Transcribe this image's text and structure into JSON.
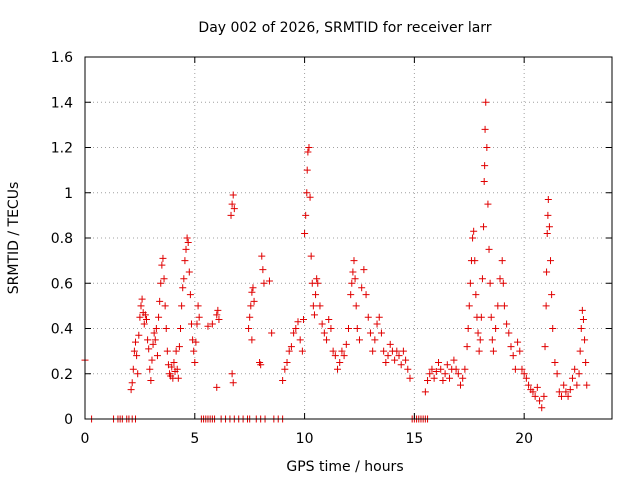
{
  "chart_data": {
    "type": "scatter",
    "title": "Day 002 of 2026, SRMTID for receiver larr",
    "xlabel": "GPS time / hours",
    "ylabel": "SRMTID / TECUs",
    "xlim": [
      0,
      24
    ],
    "ylim": [
      0,
      1.6
    ],
    "grid": true,
    "marker": "+",
    "color": "#e00000",
    "x_ticks": [
      0,
      5,
      10,
      15,
      20
    ],
    "x_tick_labels": [
      "0",
      "5",
      "10",
      "15",
      "20"
    ],
    "y_ticks": [
      0,
      0.2,
      0.4,
      0.6,
      0.8,
      1.0,
      1.2,
      1.4,
      1.6
    ],
    "y_tick_labels": [
      "0",
      "0.2",
      "0.4",
      "0.6",
      "0.8",
      "1",
      "1.2",
      "1.4",
      "1.6"
    ],
    "series": [
      {
        "name": "SRMTID",
        "points": [
          [
            0.0,
            0.26
          ],
          [
            0.3,
            0.0
          ],
          [
            1.3,
            0.0
          ],
          [
            1.5,
            0.0
          ],
          [
            1.6,
            0.0
          ],
          [
            1.7,
            0.0
          ],
          [
            1.9,
            0.0
          ],
          [
            2.0,
            0.0
          ],
          [
            2.15,
            0.0
          ],
          [
            2.3,
            0.0
          ],
          [
            2.1,
            0.13
          ],
          [
            2.15,
            0.16
          ],
          [
            2.2,
            0.22
          ],
          [
            2.25,
            0.3
          ],
          [
            2.3,
            0.34
          ],
          [
            2.35,
            0.28
          ],
          [
            2.4,
            0.2
          ],
          [
            2.45,
            0.37
          ],
          [
            2.5,
            0.45
          ],
          [
            2.55,
            0.5
          ],
          [
            2.6,
            0.53
          ],
          [
            2.65,
            0.47
          ],
          [
            2.7,
            0.42
          ],
          [
            2.75,
            0.46
          ],
          [
            2.8,
            0.44
          ],
          [
            2.85,
            0.35
          ],
          [
            2.9,
            0.31
          ],
          [
            2.95,
            0.22
          ],
          [
            3.0,
            0.17
          ],
          [
            3.05,
            0.26
          ],
          [
            3.1,
            0.33
          ],
          [
            3.15,
            0.38
          ],
          [
            3.2,
            0.35
          ],
          [
            3.25,
            0.4
          ],
          [
            3.3,
            0.28
          ],
          [
            3.35,
            0.45
          ],
          [
            3.4,
            0.52
          ],
          [
            3.45,
            0.6
          ],
          [
            3.5,
            0.68
          ],
          [
            3.55,
            0.71
          ],
          [
            3.6,
            0.62
          ],
          [
            3.65,
            0.5
          ],
          [
            3.7,
            0.4
          ],
          [
            3.75,
            0.3
          ],
          [
            3.8,
            0.24
          ],
          [
            3.85,
            0.2
          ],
          [
            3.9,
            0.19
          ],
          [
            3.95,
            0.23
          ],
          [
            4.0,
            0.18
          ],
          [
            4.05,
            0.25
          ],
          [
            4.1,
            0.21
          ],
          [
            4.15,
            0.3
          ],
          [
            4.2,
            0.22
          ],
          [
            4.25,
            0.18
          ],
          [
            4.3,
            0.32
          ],
          [
            4.35,
            0.4
          ],
          [
            4.4,
            0.5
          ],
          [
            4.45,
            0.58
          ],
          [
            4.5,
            0.62
          ],
          [
            4.55,
            0.7
          ],
          [
            4.6,
            0.75
          ],
          [
            4.65,
            0.8
          ],
          [
            4.7,
            0.78
          ],
          [
            4.75,
            0.65
          ],
          [
            4.8,
            0.55
          ],
          [
            4.85,
            0.42
          ],
          [
            4.9,
            0.35
          ],
          [
            4.95,
            0.3
          ],
          [
            5.0,
            0.25
          ],
          [
            5.05,
            0.34
          ],
          [
            5.1,
            0.42
          ],
          [
            5.15,
            0.5
          ],
          [
            5.2,
            0.45
          ],
          [
            5.3,
            0.0
          ],
          [
            5.4,
            0.0
          ],
          [
            5.5,
            0.0
          ],
          [
            5.6,
            0.0
          ],
          [
            5.7,
            0.0
          ],
          [
            5.8,
            0.0
          ],
          [
            5.9,
            0.0
          ],
          [
            5.6,
            0.41
          ],
          [
            5.8,
            0.42
          ],
          [
            6.0,
            0.46
          ],
          [
            6.05,
            0.48
          ],
          [
            6.1,
            0.44
          ],
          [
            6.0,
            0.14
          ],
          [
            6.2,
            0.0
          ],
          [
            6.4,
            0.0
          ],
          [
            6.6,
            0.0
          ],
          [
            6.8,
            0.0
          ],
          [
            6.7,
            0.2
          ],
          [
            6.75,
            0.16
          ],
          [
            6.65,
            0.9
          ],
          [
            6.7,
            0.95
          ],
          [
            6.75,
            0.99
          ],
          [
            6.8,
            0.93
          ],
          [
            7.0,
            0.0
          ],
          [
            7.2,
            0.0
          ],
          [
            7.4,
            0.0
          ],
          [
            7.5,
            0.0
          ],
          [
            7.45,
            0.4
          ],
          [
            7.5,
            0.45
          ],
          [
            7.55,
            0.5
          ],
          [
            7.6,
            0.56
          ],
          [
            7.65,
            0.58
          ],
          [
            7.7,
            0.52
          ],
          [
            7.6,
            0.35
          ],
          [
            7.8,
            0.0
          ],
          [
            8.0,
            0.0
          ],
          [
            8.2,
            0.0
          ],
          [
            7.95,
            0.25
          ],
          [
            8.0,
            0.24
          ],
          [
            8.05,
            0.72
          ],
          [
            8.1,
            0.66
          ],
          [
            8.15,
            0.6
          ],
          [
            8.5,
            0.38
          ],
          [
            8.4,
            0.61
          ],
          [
            8.6,
            0.0
          ],
          [
            8.8,
            0.0
          ],
          [
            9.0,
            0.0
          ],
          [
            9.0,
            0.17
          ],
          [
            9.1,
            0.22
          ],
          [
            9.2,
            0.25
          ],
          [
            9.3,
            0.3
          ],
          [
            9.4,
            0.32
          ],
          [
            9.5,
            0.38
          ],
          [
            9.6,
            0.4
          ],
          [
            9.7,
            0.43
          ],
          [
            9.8,
            0.35
          ],
          [
            9.9,
            0.3
          ],
          [
            9.95,
            0.44
          ],
          [
            10.0,
            0.82
          ],
          [
            10.05,
            0.9
          ],
          [
            10.1,
            1.0
          ],
          [
            10.12,
            1.1
          ],
          [
            10.15,
            1.18
          ],
          [
            10.2,
            1.2
          ],
          [
            10.25,
            0.98
          ],
          [
            10.3,
            0.72
          ],
          [
            10.35,
            0.6
          ],
          [
            10.4,
            0.5
          ],
          [
            10.45,
            0.46
          ],
          [
            10.5,
            0.55
          ],
          [
            10.55,
            0.62
          ],
          [
            10.6,
            0.6
          ],
          [
            10.7,
            0.5
          ],
          [
            10.8,
            0.42
          ],
          [
            10.9,
            0.38
          ],
          [
            11.0,
            0.35
          ],
          [
            11.1,
            0.44
          ],
          [
            11.2,
            0.4
          ],
          [
            11.3,
            0.3
          ],
          [
            11.4,
            0.28
          ],
          [
            11.5,
            0.22
          ],
          [
            11.6,
            0.25
          ],
          [
            11.7,
            0.3
          ],
          [
            11.8,
            0.28
          ],
          [
            11.9,
            0.33
          ],
          [
            12.0,
            0.4
          ],
          [
            12.1,
            0.55
          ],
          [
            12.15,
            0.6
          ],
          [
            12.2,
            0.65
          ],
          [
            12.25,
            0.7
          ],
          [
            12.3,
            0.62
          ],
          [
            12.35,
            0.5
          ],
          [
            12.4,
            0.4
          ],
          [
            12.5,
            0.35
          ],
          [
            12.6,
            0.58
          ],
          [
            12.7,
            0.66
          ],
          [
            12.8,
            0.55
          ],
          [
            12.9,
            0.45
          ],
          [
            13.0,
            0.38
          ],
          [
            13.1,
            0.3
          ],
          [
            13.2,
            0.35
          ],
          [
            13.3,
            0.42
          ],
          [
            13.4,
            0.45
          ],
          [
            13.5,
            0.38
          ],
          [
            13.6,
            0.3
          ],
          [
            13.7,
            0.25
          ],
          [
            13.8,
            0.28
          ],
          [
            13.9,
            0.33
          ],
          [
            14.0,
            0.3
          ],
          [
            14.1,
            0.26
          ],
          [
            14.2,
            0.3
          ],
          [
            14.3,
            0.28
          ],
          [
            14.4,
            0.24
          ],
          [
            14.5,
            0.3
          ],
          [
            14.6,
            0.26
          ],
          [
            14.7,
            0.22
          ],
          [
            14.8,
            0.18
          ],
          [
            14.9,
            0.0
          ],
          [
            15.0,
            0.0
          ],
          [
            15.1,
            0.0
          ],
          [
            15.2,
            0.0
          ],
          [
            15.3,
            0.0
          ],
          [
            15.4,
            0.0
          ],
          [
            15.5,
            0.0
          ],
          [
            15.6,
            0.0
          ],
          [
            15.5,
            0.12
          ],
          [
            15.6,
            0.17
          ],
          [
            15.7,
            0.2
          ],
          [
            15.8,
            0.22
          ],
          [
            15.9,
            0.18
          ],
          [
            16.0,
            0.21
          ],
          [
            16.1,
            0.25
          ],
          [
            16.2,
            0.22
          ],
          [
            16.3,
            0.17
          ],
          [
            16.4,
            0.2
          ],
          [
            16.5,
            0.24
          ],
          [
            16.6,
            0.18
          ],
          [
            16.7,
            0.22
          ],
          [
            16.8,
            0.26
          ],
          [
            16.9,
            0.22
          ],
          [
            17.0,
            0.2
          ],
          [
            17.1,
            0.15
          ],
          [
            17.2,
            0.18
          ],
          [
            17.3,
            0.22
          ],
          [
            17.4,
            0.32
          ],
          [
            17.45,
            0.4
          ],
          [
            17.5,
            0.5
          ],
          [
            17.55,
            0.6
          ],
          [
            17.6,
            0.7
          ],
          [
            17.65,
            0.8
          ],
          [
            17.7,
            0.83
          ],
          [
            17.75,
            0.7
          ],
          [
            17.8,
            0.55
          ],
          [
            17.85,
            0.45
          ],
          [
            17.9,
            0.38
          ],
          [
            17.95,
            0.3
          ],
          [
            18.0,
            0.35
          ],
          [
            18.05,
            0.45
          ],
          [
            18.1,
            0.62
          ],
          [
            18.15,
            0.85
          ],
          [
            18.18,
            1.05
          ],
          [
            18.2,
            1.12
          ],
          [
            18.22,
            1.28
          ],
          [
            18.25,
            1.4
          ],
          [
            18.3,
            1.2
          ],
          [
            18.35,
            0.95
          ],
          [
            18.4,
            0.75
          ],
          [
            18.45,
            0.6
          ],
          [
            18.5,
            0.45
          ],
          [
            18.55,
            0.35
          ],
          [
            18.6,
            0.3
          ],
          [
            18.7,
            0.4
          ],
          [
            18.8,
            0.5
          ],
          [
            18.9,
            0.62
          ],
          [
            19.0,
            0.7
          ],
          [
            19.05,
            0.6
          ],
          [
            19.1,
            0.5
          ],
          [
            19.2,
            0.42
          ],
          [
            19.3,
            0.38
          ],
          [
            19.4,
            0.32
          ],
          [
            19.5,
            0.28
          ],
          [
            19.6,
            0.22
          ],
          [
            19.7,
            0.34
          ],
          [
            19.8,
            0.3
          ],
          [
            19.9,
            0.22
          ],
          [
            20.0,
            0.2
          ],
          [
            20.1,
            0.18
          ],
          [
            20.2,
            0.15
          ],
          [
            20.3,
            0.13
          ],
          [
            20.4,
            0.12
          ],
          [
            20.5,
            0.1
          ],
          [
            20.6,
            0.14
          ],
          [
            20.7,
            0.08
          ],
          [
            20.8,
            0.05
          ],
          [
            20.9,
            0.1
          ],
          [
            20.95,
            0.32
          ],
          [
            21.0,
            0.5
          ],
          [
            21.02,
            0.65
          ],
          [
            21.05,
            0.82
          ],
          [
            21.08,
            0.9
          ],
          [
            21.1,
            0.97
          ],
          [
            21.15,
            0.85
          ],
          [
            21.2,
            0.7
          ],
          [
            21.25,
            0.55
          ],
          [
            21.3,
            0.4
          ],
          [
            21.4,
            0.25
          ],
          [
            21.5,
            0.2
          ],
          [
            21.6,
            0.12
          ],
          [
            21.7,
            0.1
          ],
          [
            21.8,
            0.15
          ],
          [
            21.9,
            0.12
          ],
          [
            22.0,
            0.1
          ],
          [
            22.1,
            0.13
          ],
          [
            22.2,
            0.18
          ],
          [
            22.3,
            0.22
          ],
          [
            22.4,
            0.15
          ],
          [
            22.5,
            0.2
          ],
          [
            22.55,
            0.3
          ],
          [
            22.6,
            0.4
          ],
          [
            22.65,
            0.48
          ],
          [
            22.7,
            0.44
          ],
          [
            22.75,
            0.35
          ],
          [
            22.8,
            0.25
          ],
          [
            22.85,
            0.15
          ]
        ]
      }
    ]
  }
}
